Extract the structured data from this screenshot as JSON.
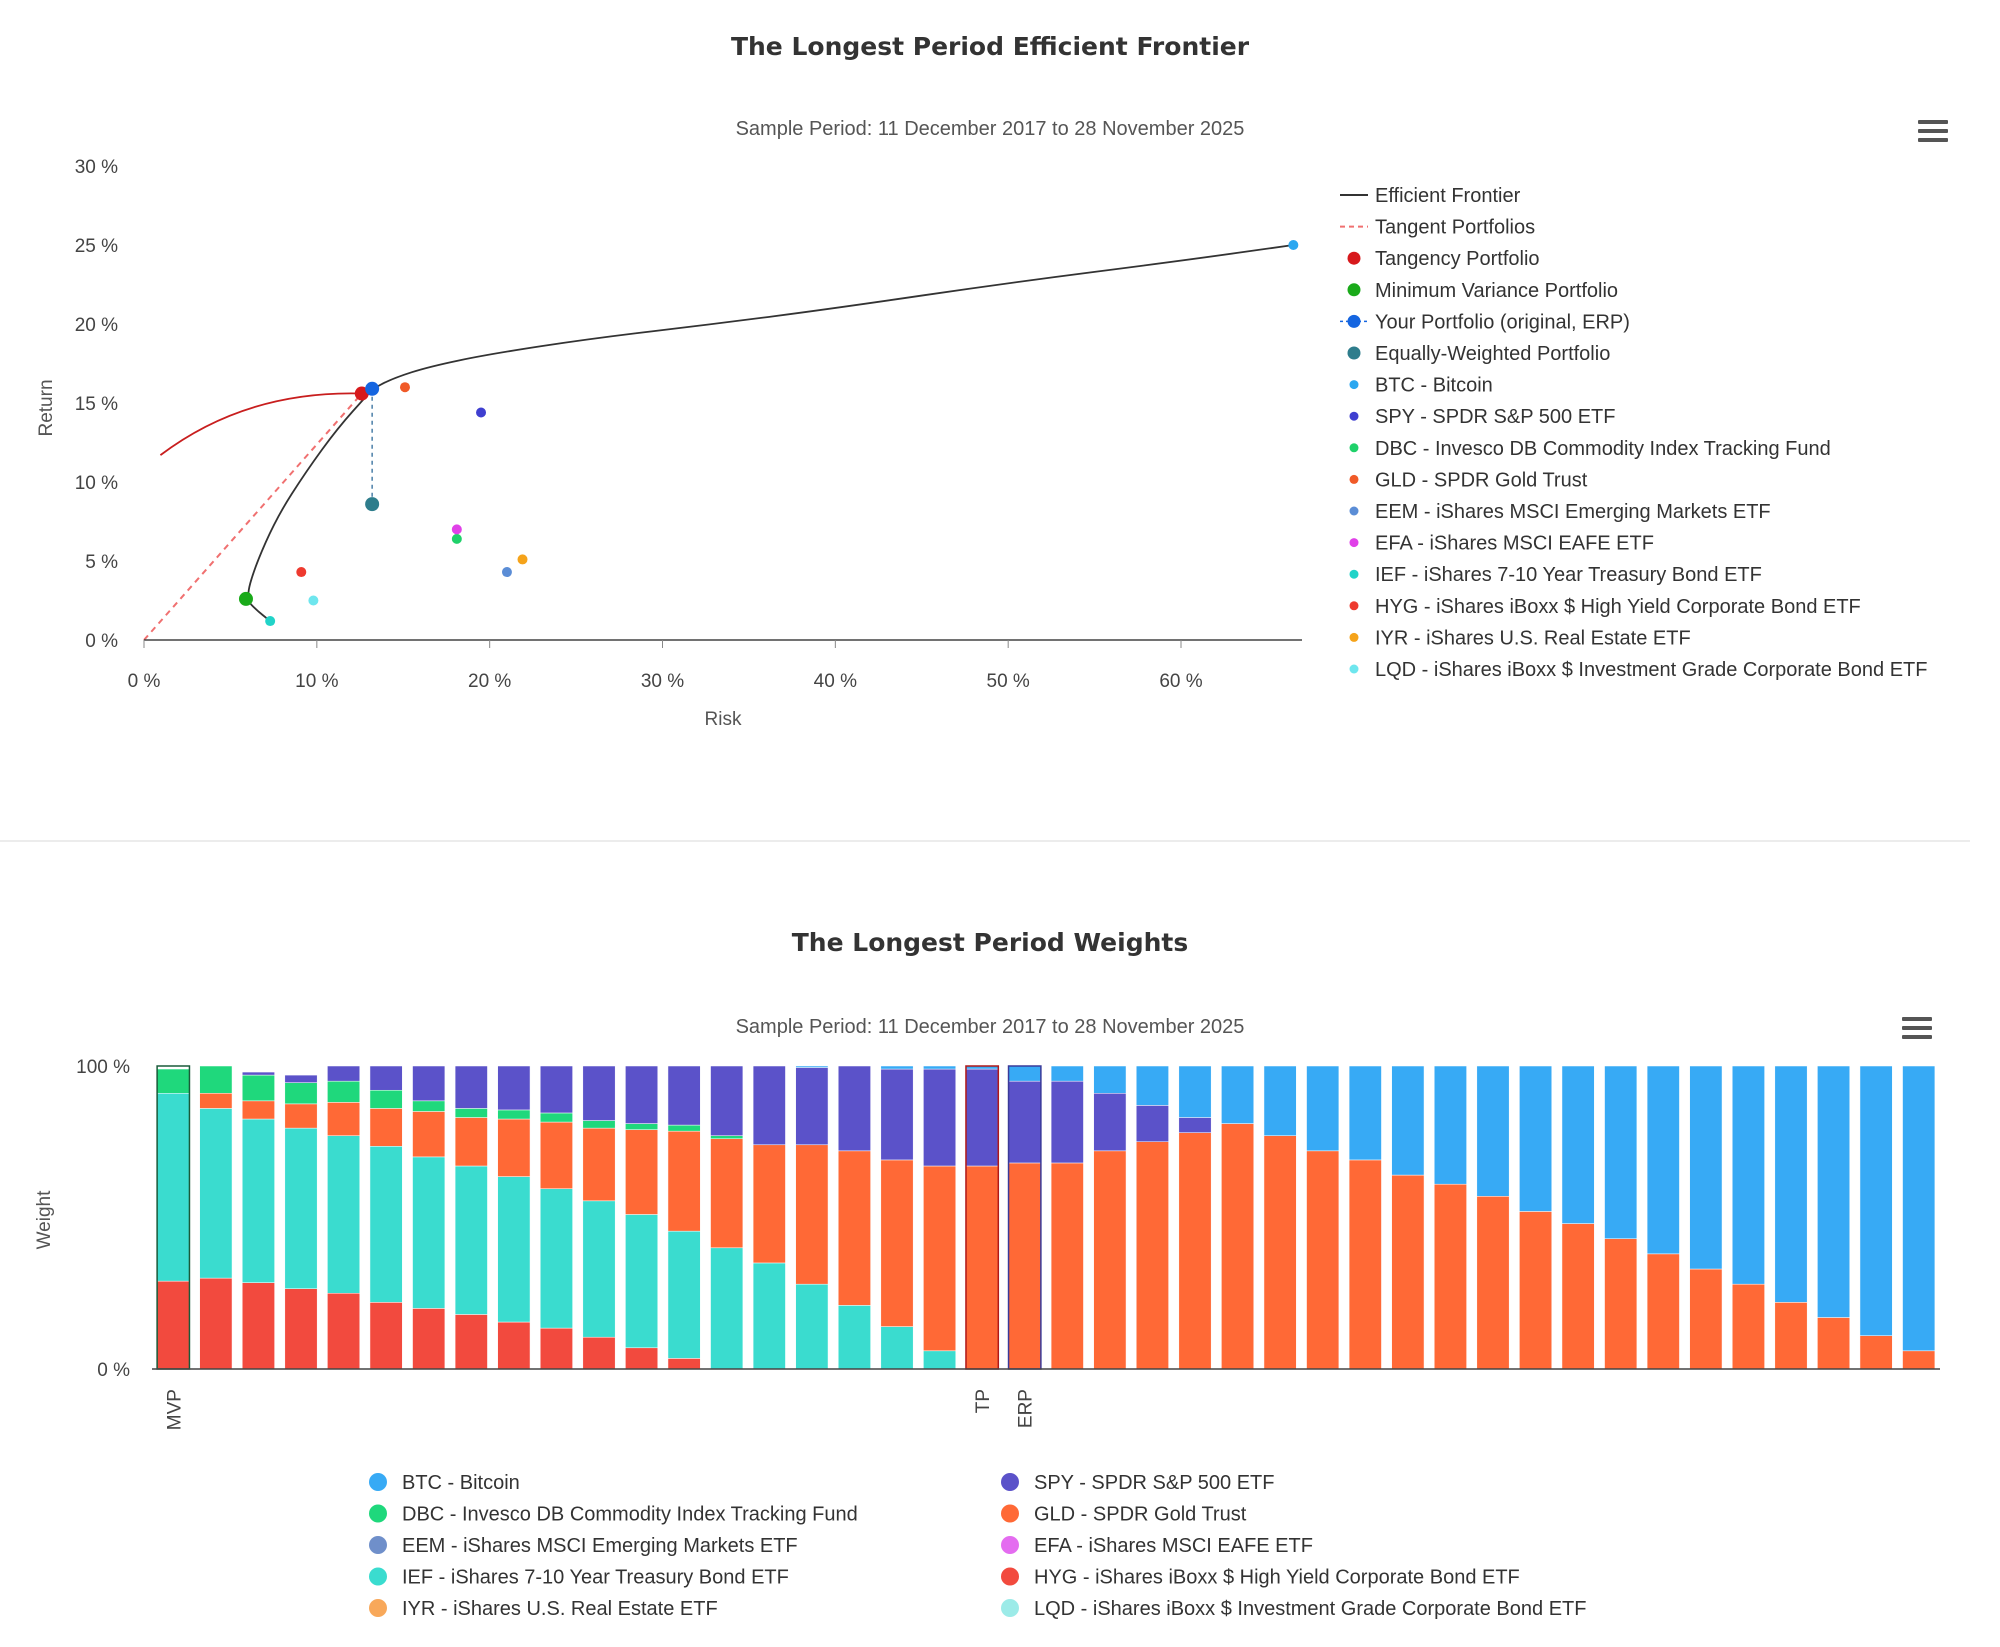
{
  "chart_data": [
    {
      "type": "scatter",
      "title": "The Longest Period Efficient Frontier",
      "subtitle": "Sample Period: 11 December 2017 to 28 November 2025",
      "xlabel": "Risk",
      "ylabel": "Return",
      "xlim": [
        0,
        67
      ],
      "ylim": [
        0,
        30
      ],
      "x_ticks": [
        0,
        10,
        20,
        30,
        40,
        50,
        60
      ],
      "y_ticks": [
        0,
        5,
        10,
        15,
        20,
        25,
        30
      ],
      "x_tick_labels": [
        "0 %",
        "10 %",
        "20 %",
        "30 %",
        "40 %",
        "50 %",
        "60 %"
      ],
      "y_tick_labels": [
        "0 %",
        "5 %",
        "10 %",
        "15 %",
        "20 %",
        "25 %",
        "30 %"
      ],
      "legend_position": "right",
      "frontier": {
        "name": "Efficient Frontier",
        "points": [
          [
            7.3,
            1.2
          ],
          [
            6.5,
            1.9
          ],
          [
            5.9,
            2.6
          ],
          [
            6.4,
            4.6
          ],
          [
            7.7,
            7.8
          ],
          [
            9.4,
            10.7
          ],
          [
            11.2,
            13.4
          ],
          [
            13.0,
            15.6
          ],
          [
            13.3,
            15.95
          ],
          [
            14.5,
            16.6
          ],
          [
            16.5,
            17.3
          ],
          [
            20.0,
            18.1
          ],
          [
            26.0,
            19.1
          ],
          [
            33.0,
            20.0
          ],
          [
            40.0,
            21.0
          ],
          [
            50.0,
            22.6
          ],
          [
            60.0,
            24.0
          ],
          [
            66.5,
            25.0
          ]
        ]
      },
      "tangent_line": {
        "name": "Tangent Portfolios",
        "points": [
          [
            0,
            0
          ],
          [
            12.6,
            15.6
          ]
        ]
      },
      "portfolio_link": {
        "points": [
          [
            13.2,
            15.9
          ],
          [
            13.2,
            8.6
          ]
        ]
      },
      "portfolios": [
        {
          "name": "Tangency Portfolio",
          "x": 12.6,
          "y": 15.6,
          "color": "#d7191c"
        },
        {
          "name": "Minimum Variance Portfolio",
          "x": 5.9,
          "y": 2.6,
          "color": "#1aaa1a"
        },
        {
          "name": "Your Portfolio (original, ERP)",
          "x": 13.2,
          "y": 15.9,
          "color": "#1565e0"
        },
        {
          "name": "Equally-Weighted Portfolio",
          "x": 13.2,
          "y": 8.6,
          "color": "#2e7d8c"
        }
      ],
      "assets": [
        {
          "name": "BTC - Bitcoin",
          "x": 66.5,
          "y": 25.0,
          "color": "#2ba7f0"
        },
        {
          "name": "SPY - SPDR S&P 500 ETF",
          "x": 19.5,
          "y": 14.4,
          "color": "#3f3fd0"
        },
        {
          "name": "DBC - Invesco DB Commodity Index Tracking Fund",
          "x": 18.1,
          "y": 6.4,
          "color": "#1fd16a"
        },
        {
          "name": "GLD - SPDR Gold Trust",
          "x": 15.1,
          "y": 16.0,
          "color": "#f05a28"
        },
        {
          "name": "EEM - iShares MSCI Emerging Markets ETF",
          "x": 21.0,
          "y": 4.3,
          "color": "#5b8dd6"
        },
        {
          "name": "EFA - iShares MSCI EAFE ETF",
          "x": 18.1,
          "y": 7.0,
          "color": "#e040e8"
        },
        {
          "name": "IEF - iShares 7-10 Year Treasury Bond ETF",
          "x": 7.3,
          "y": 1.2,
          "color": "#21d3c8"
        },
        {
          "name": "HYG - iShares iBoxx $ High Yield Corporate Bond ETF",
          "x": 9.1,
          "y": 4.3,
          "color": "#ee3a2f"
        },
        {
          "name": "IYR - iShares U.S. Real Estate ETF",
          "x": 21.9,
          "y": 5.1,
          "color": "#f5a31a"
        },
        {
          "name": "LQD - iShares iBoxx $ Investment Grade Corporate Bond ETF",
          "x": 9.8,
          "y": 2.5,
          "color": "#6ee6ee"
        }
      ]
    },
    {
      "type": "bar",
      "stacked": true,
      "title": "The Longest Period Weights",
      "subtitle": "Sample Period: 11 December 2017 to 28 November 2025",
      "xlabel": "",
      "ylabel": "Weight",
      "ylim": [
        0,
        100
      ],
      "y_tick_labels": [
        "0 %",
        "100 %"
      ],
      "legend_position": "bottom",
      "categories": [
        "MVP",
        "",
        "",
        "",
        "",
        "",
        "",
        "",
        "",
        "",
        "",
        "",
        "",
        "",
        "",
        "",
        "",
        "",
        "",
        "TP",
        "ERP",
        "",
        "",
        "",
        "",
        "",
        "",
        "",
        "",
        "",
        "",
        "",
        "",
        "",
        "",
        "",
        "",
        "",
        "",
        "",
        "",
        ""
      ],
      "highlighted": [
        0,
        19,
        20
      ],
      "stack_order": [
        "HYG",
        "IEF",
        "GLD",
        "DBC",
        "SPY",
        "BTC"
      ],
      "series": [
        {
          "key": "HYG",
          "name": "HYG - iShares iBoxx $ High Yield Corporate Bond ETF",
          "color": "#f24a3e",
          "values": [
            29,
            30,
            28.5,
            26.5,
            25,
            22,
            20,
            18,
            15.5,
            13.5,
            10.5,
            7,
            3.5,
            0,
            0,
            0,
            0,
            0,
            0,
            0,
            0,
            0,
            0,
            0,
            0,
            0,
            0,
            0,
            0,
            0,
            0,
            0,
            0,
            0,
            0,
            0,
            0,
            0,
            0,
            0,
            0,
            0
          ]
        },
        {
          "key": "IEF",
          "name": "IEF - iShares 7-10 Year Treasury Bond ETF",
          "color": "#3adccf",
          "values": [
            62,
            56,
            54,
            53,
            52,
            51.5,
            50,
            49,
            48,
            46,
            45,
            44,
            42,
            40,
            35,
            28,
            21,
            14,
            6,
            0,
            0,
            0,
            0,
            0,
            0,
            0,
            0,
            0,
            0,
            0,
            0,
            0,
            0,
            0,
            0,
            0,
            0,
            0,
            0,
            0,
            0,
            0
          ]
        },
        {
          "key": "GLD",
          "name": "GLD - SPDR Gold Trust",
          "color": "#ff6936",
          "values": [
            0,
            5,
            6,
            8,
            11,
            12.5,
            15,
            16,
            19,
            22,
            24,
            28,
            33,
            36,
            39,
            46,
            51,
            55,
            61,
            67,
            68,
            68,
            72,
            75,
            78,
            81,
            77,
            72,
            69,
            64,
            61,
            57,
            52,
            48,
            43,
            38,
            33,
            28,
            22,
            17,
            11,
            6
          ]
        },
        {
          "key": "DBC",
          "name": "DBC - Invesco DB Commodity Index Tracking Fund",
          "color": "#1fd87c",
          "values": [
            8,
            9,
            8.5,
            7,
            7,
            6,
            3.5,
            3,
            3,
            3,
            2.5,
            2,
            2,
            1,
            0,
            0,
            0,
            0,
            0,
            0,
            0,
            0,
            0,
            0,
            0,
            0,
            0,
            0,
            0,
            0,
            0,
            0,
            0,
            0,
            0,
            0,
            0,
            0,
            0,
            0,
            0,
            0
          ]
        },
        {
          "key": "SPY",
          "name": "SPY - SPDR S&P 500 ETF",
          "color": "#5b52c9",
          "values": [
            0,
            0,
            1,
            2.5,
            5,
            8,
            11.5,
            14,
            14.5,
            15.5,
            18,
            19,
            19.5,
            23,
            26,
            25.5,
            28,
            30,
            32,
            32,
            27,
            27,
            19,
            12,
            5,
            0,
            0,
            0,
            0,
            0,
            0,
            0,
            0,
            0,
            0,
            0,
            0,
            0,
            0,
            0,
            0,
            0
          ]
        },
        {
          "key": "BTC",
          "name": "BTC - Bitcoin",
          "color": "#37aaf5",
          "values": [
            0,
            0,
            0,
            0,
            0,
            0,
            0,
            0,
            0,
            0,
            0,
            0,
            0,
            0,
            0,
            0.5,
            0,
            1,
            1,
            1,
            5,
            5,
            9,
            13,
            17,
            19,
            23,
            28,
            31,
            36,
            39,
            43,
            48,
            52,
            57,
            62,
            67,
            72,
            78,
            83,
            89,
            94
          ]
        }
      ],
      "legend": [
        {
          "name": "BTC - Bitcoin",
          "color": "#37aaf5"
        },
        {
          "name": "SPY - SPDR S&P 500 ETF",
          "color": "#5b52c9"
        },
        {
          "name": "DBC - Invesco DB Commodity Index Tracking Fund",
          "color": "#1fd87c"
        },
        {
          "name": "GLD - SPDR Gold Trust",
          "color": "#ff6936"
        },
        {
          "name": "EEM - iShares MSCI Emerging Markets ETF",
          "color": "#6f8fca"
        },
        {
          "name": "EFA - iShares MSCI EAFE ETF",
          "color": "#e46cf0"
        },
        {
          "name": "IEF - iShares 7-10 Year Treasury Bond ETF",
          "color": "#3adccf"
        },
        {
          "name": "HYG - iShares iBoxx $ High Yield Corporate Bond ETF",
          "color": "#f24a3e"
        },
        {
          "name": "IYR - iShares U.S. Real Estate ETF",
          "color": "#f8a85a"
        },
        {
          "name": "LQD - iShares iBoxx $ Investment Grade Corporate Bond ETF",
          "color": "#9cebe8"
        }
      ]
    }
  ]
}
